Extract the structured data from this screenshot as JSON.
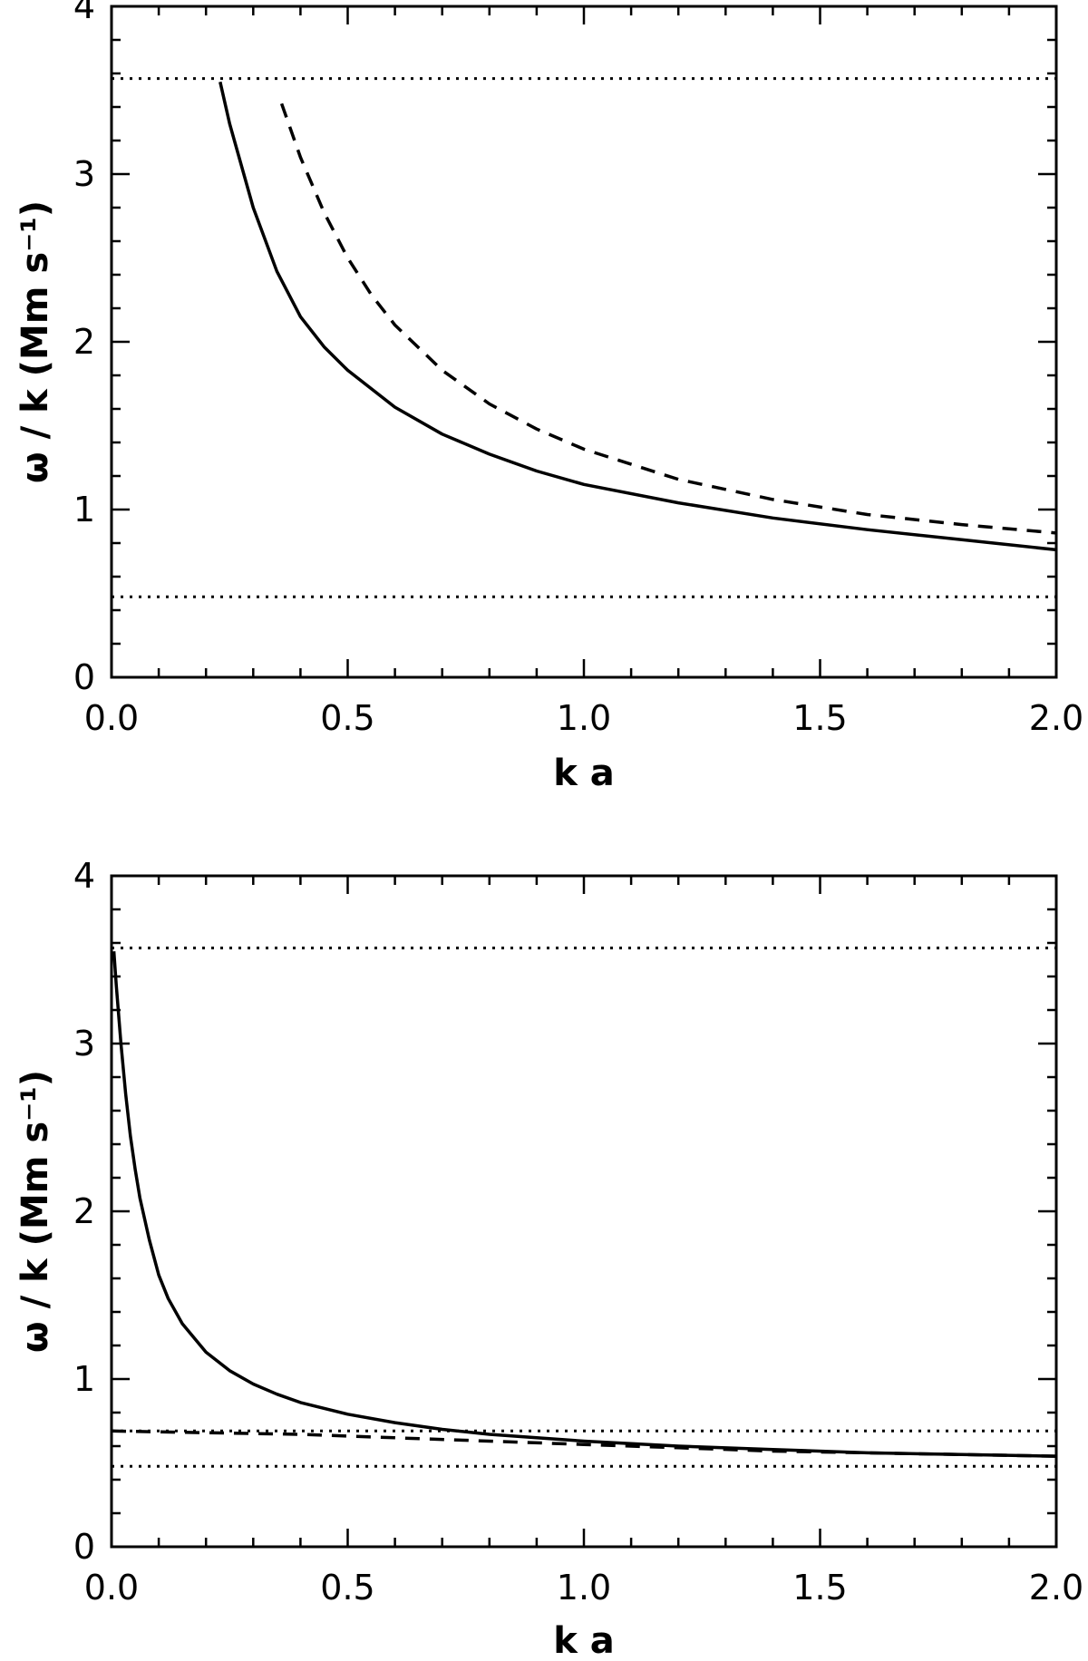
{
  "chart_data": [
    {
      "type": "line",
      "title": "",
      "xlabel": "k a",
      "ylabel": "ω / k (Mm s⁻¹)",
      "xlim": [
        0,
        2
      ],
      "ylim": [
        0,
        4
      ],
      "xticks": [
        "0.0",
        "0.5",
        "1.0",
        "1.5",
        "2.0"
      ],
      "yticks": [
        "0",
        "1",
        "2",
        "3",
        "4"
      ],
      "grid": false,
      "series": [
        {
          "style": "solid",
          "x": [
            0.23,
            0.25,
            0.3,
            0.35,
            0.4,
            0.45,
            0.5,
            0.6,
            0.7,
            0.8,
            0.9,
            1.0,
            1.2,
            1.4,
            1.6,
            1.8,
            2.0
          ],
          "y": [
            3.55,
            3.3,
            2.8,
            2.42,
            2.15,
            1.97,
            1.83,
            1.61,
            1.45,
            1.33,
            1.23,
            1.15,
            1.04,
            0.95,
            0.88,
            0.82,
            0.76
          ]
        },
        {
          "style": "dashed",
          "x": [
            0.36,
            0.4,
            0.45,
            0.5,
            0.55,
            0.6,
            0.7,
            0.8,
            0.9,
            1.0,
            1.2,
            1.4,
            1.6,
            1.8,
            2.0
          ],
          "y": [
            3.42,
            3.1,
            2.77,
            2.5,
            2.28,
            2.1,
            1.83,
            1.63,
            1.48,
            1.36,
            1.18,
            1.06,
            0.97,
            0.91,
            0.86
          ]
        },
        {
          "style": "dotted",
          "x": [
            0,
            2
          ],
          "y": [
            3.57,
            3.57
          ]
        },
        {
          "style": "dotted",
          "x": [
            0,
            2
          ],
          "y": [
            0.48,
            0.48
          ]
        }
      ]
    },
    {
      "type": "line",
      "title": "",
      "xlabel": "k a",
      "ylabel": "ω / k (Mm s⁻¹)",
      "xlim": [
        0,
        2
      ],
      "ylim": [
        0,
        4
      ],
      "xticks": [
        "0.0",
        "0.5",
        "1.0",
        "1.5",
        "2.0"
      ],
      "yticks": [
        "0",
        "1",
        "2",
        "3",
        "4"
      ],
      "grid": false,
      "series": [
        {
          "style": "solid",
          "x": [
            0.005,
            0.01,
            0.02,
            0.03,
            0.04,
            0.05,
            0.06,
            0.08,
            0.1,
            0.12,
            0.15,
            0.2,
            0.25,
            0.3,
            0.35,
            0.4,
            0.5,
            0.6,
            0.7,
            0.8,
            0.9,
            1.0,
            1.2,
            1.4,
            1.6,
            1.8,
            2.0
          ],
          "y": [
            3.55,
            3.35,
            3.0,
            2.7,
            2.45,
            2.25,
            2.08,
            1.83,
            1.62,
            1.48,
            1.33,
            1.16,
            1.05,
            0.97,
            0.91,
            0.86,
            0.79,
            0.74,
            0.7,
            0.67,
            0.65,
            0.63,
            0.6,
            0.58,
            0.56,
            0.55,
            0.54
          ]
        },
        {
          "style": "dashed",
          "x": [
            0,
            0.2,
            0.4,
            0.6,
            0.8,
            1.0,
            1.2,
            1.4,
            1.6,
            1.8,
            2.0
          ],
          "y": [
            0.69,
            0.68,
            0.67,
            0.65,
            0.63,
            0.61,
            0.59,
            0.57,
            0.56,
            0.55,
            0.54
          ]
        },
        {
          "style": "dotted",
          "x": [
            0,
            2
          ],
          "y": [
            3.57,
            3.57
          ]
        },
        {
          "style": "dotted",
          "x": [
            0,
            2
          ],
          "y": [
            0.69,
            0.69
          ]
        },
        {
          "style": "dotted",
          "x": [
            0,
            2
          ],
          "y": [
            0.48,
            0.48
          ]
        }
      ]
    }
  ]
}
